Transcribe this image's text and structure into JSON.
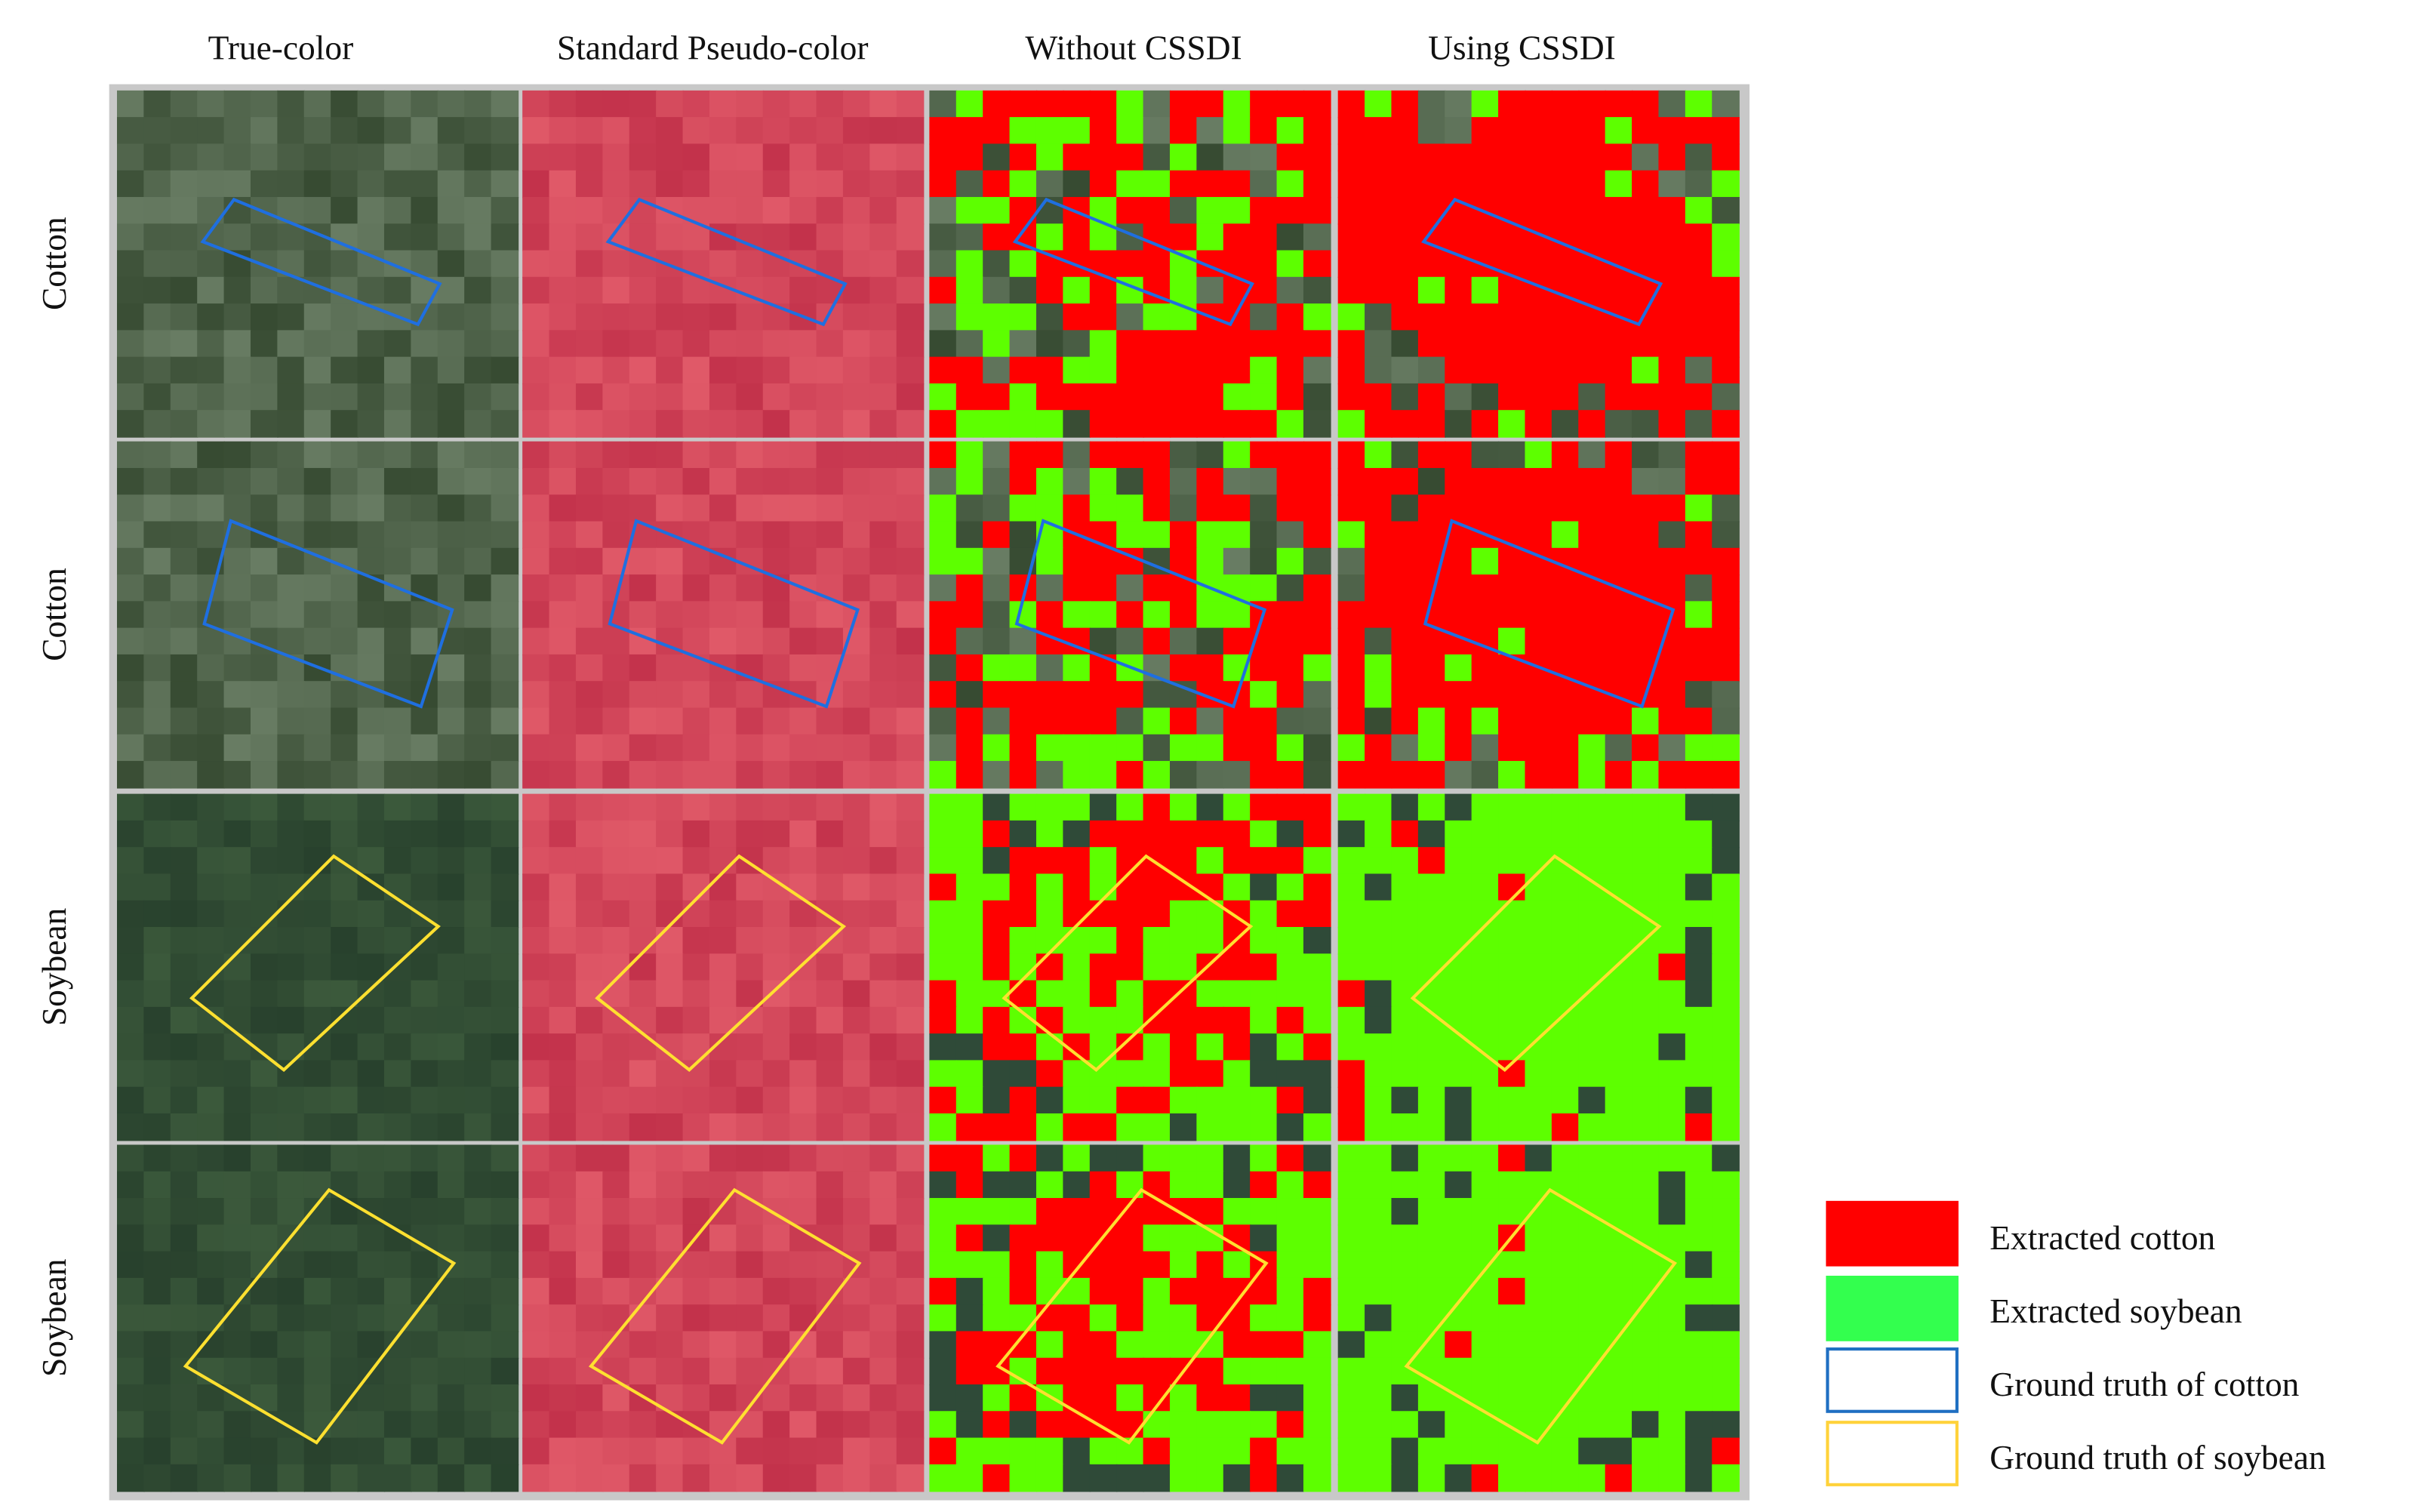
{
  "columns": [
    "True-color",
    "Standard Pseudo-color",
    "Without CSSDI",
    "Using CSSDI"
  ],
  "rows": [
    "Cotton",
    "Cotton",
    "Soybean",
    "Soybean"
  ],
  "legend": [
    "Extracted cotton",
    "Extracted soybean",
    "Ground truth of cotton",
    "Ground truth of soybean"
  ]
}
